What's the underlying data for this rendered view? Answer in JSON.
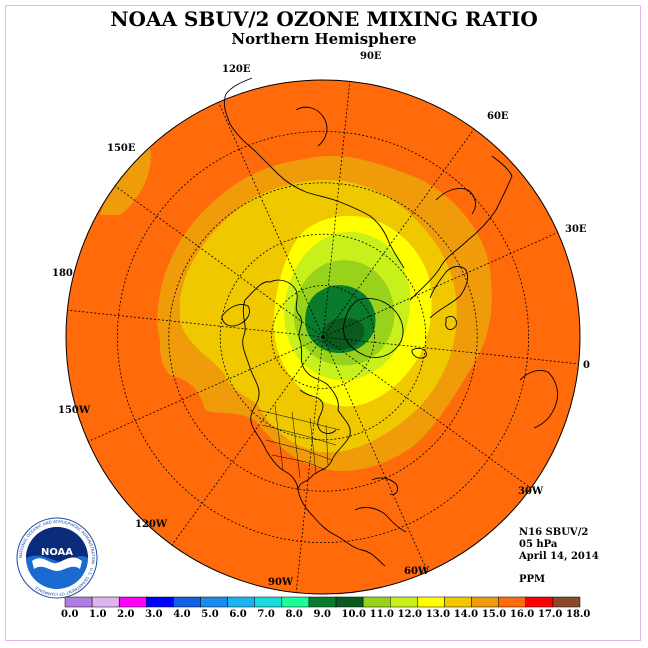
{
  "title": "NOAA SBUV/2 OZONE MIXING RATIO",
  "subtitle": "Northern Hemisphere",
  "longitude_labels": [
    "90E",
    "60E",
    "30E",
    "0",
    "30W",
    "60W",
    "90W",
    "120W",
    "150W",
    "180",
    "150E",
    "120E"
  ],
  "info": {
    "instrument": "N16 SBUV/2",
    "pressure_level": "05 hPa",
    "date": "April 14, 2014",
    "units": "PPM"
  },
  "colorbar": {
    "tick_labels": [
      "0.0",
      "1.0",
      "2.0",
      "3.0",
      "4.0",
      "5.0",
      "6.0",
      "7.0",
      "8.0",
      "9.0",
      "10.0",
      "11.0",
      "12.0",
      "13.0",
      "14.0",
      "15.0",
      "16.0",
      "17.0",
      "18.0"
    ],
    "colors": [
      "#b07ee0",
      "#dcb4f0",
      "#ff00ff",
      "#0000ff",
      "#1060e6",
      "#1a8cf0",
      "#1ab4f0",
      "#1adcdc",
      "#18ff9c",
      "#0a7a2c",
      "#0a5a20",
      "#98d21a",
      "#c8f01a",
      "#ffff00",
      "#f0c800",
      "#f09c0a",
      "#ff6a0a",
      "#ff0000",
      "#8a4a2a"
    ]
  },
  "map_colors": {
    "background": "#ff6a0a",
    "level_15": "#f09c0a",
    "level_14": "#f0c800",
    "level_13": "#ffff00",
    "level_12": "#c8f01a",
    "level_11": "#98d21a",
    "level_10": "#0a5a20",
    "level_9": "#0a7a2c",
    "coastline": "#000000",
    "gridline": "#000000"
  },
  "logo": {
    "text": "NOAA",
    "ring_text": "NATIONAL OCEANIC AND ATMOSPHERIC ADMINISTRATION · U.S. DEPARTMENT OF COMMERCE"
  }
}
